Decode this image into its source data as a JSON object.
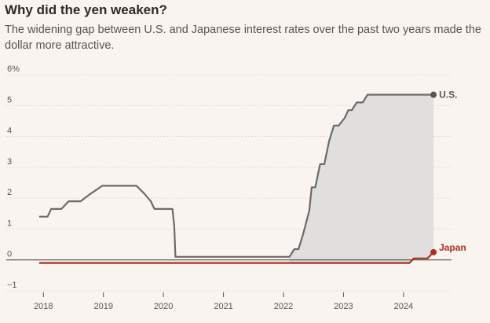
{
  "header": {
    "title": "Why did the yen weaken?",
    "subtitle": "The widening gap between U.S. and Japanese interest rates over the past two years made the dollar more attractive."
  },
  "colors": {
    "us": "#6b6b6b",
    "japan": "#a8321e",
    "gap_fill": "#e1dfdd",
    "grid": "#cfcac6",
    "zero_line": "#3a3a3a"
  },
  "chart_data": {
    "type": "line",
    "title": "Why did the yen weaken?",
    "subtitle": "The widening gap between U.S. and Japanese interest rates over the past two years made the dollar more attractive.",
    "xlabel": "",
    "ylabel": "",
    "xlim": [
      2017.8,
      2024.8
    ],
    "ylim": [
      -1,
      6
    ],
    "x_ticks": [
      2018,
      2019,
      2020,
      2021,
      2022,
      2023,
      2024
    ],
    "x_tick_labels": [
      "2018",
      "2019",
      "2020",
      "2021",
      "2022",
      "2023",
      "2024"
    ],
    "y_ticks": [
      6,
      5,
      4,
      3,
      2,
      1,
      0,
      -1
    ],
    "y_tick_labels": [
      "6%",
      "5",
      "4",
      "3",
      "2",
      "1",
      "0",
      "−1"
    ],
    "grid": "horizontal",
    "shaded_gap_from": 2022.1,
    "series": [
      {
        "name": "U.S.",
        "x": [
          2017.93,
          2018.07,
          2018.13,
          2018.3,
          2018.42,
          2018.62,
          2018.79,
          2018.98,
          2019.55,
          2019.68,
          2019.79,
          2019.85,
          2020.15,
          2020.18,
          2020.2,
          2022.1,
          2022.18,
          2022.25,
          2022.33,
          2022.43,
          2022.47,
          2022.53,
          2022.61,
          2022.68,
          2022.76,
          2022.84,
          2022.92,
          2023.02,
          2023.08,
          2023.14,
          2023.22,
          2023.32,
          2023.4,
          2023.48,
          2024.5
        ],
        "values": [
          1.4,
          1.4,
          1.65,
          1.65,
          1.9,
          1.9,
          2.15,
          2.4,
          2.4,
          2.15,
          1.9,
          1.65,
          1.65,
          1.1,
          0.1,
          0.1,
          0.35,
          0.35,
          0.85,
          1.6,
          2.35,
          2.35,
          3.1,
          3.1,
          3.85,
          4.35,
          4.35,
          4.6,
          4.85,
          4.85,
          5.1,
          5.1,
          5.35,
          5.35,
          5.35
        ]
      },
      {
        "name": "Japan",
        "x": [
          2017.93,
          2024.1,
          2024.17,
          2024.4,
          2024.5
        ],
        "values": [
          -0.1,
          -0.1,
          0.05,
          0.05,
          0.25
        ]
      }
    ]
  }
}
